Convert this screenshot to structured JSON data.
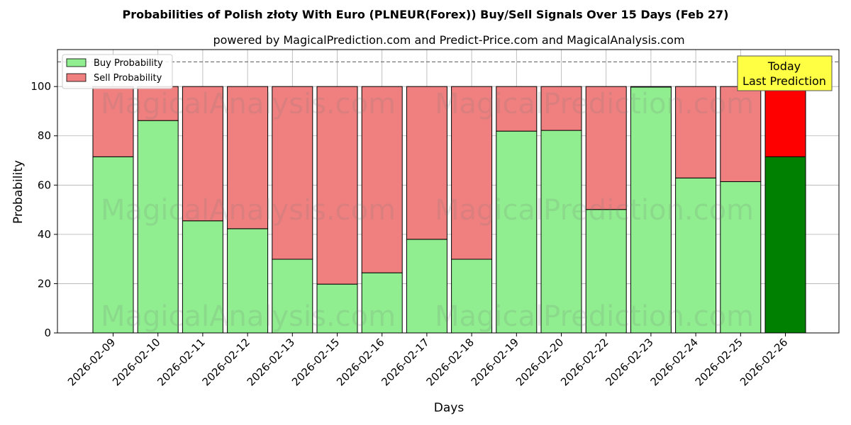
{
  "chart_data": {
    "type": "bar",
    "stacked": true,
    "title": "Probabilities of Polish złoty With Euro (PLNEUR(Forex)) Buy/Sell Signals Over 15 Days (Feb 27)",
    "subtitle": "powered by MagicalPrediction.com and Predict-Price.com and MagicalAnalysis.com",
    "xlabel": "Days",
    "ylabel": "Probability",
    "ylim": [
      0,
      115
    ],
    "yticks": [
      0,
      20,
      40,
      60,
      80,
      100
    ],
    "reference_line": 110,
    "grid": true,
    "legend_position": "top-left",
    "categories": [
      "2026-02-09",
      "2026-02-10",
      "2026-02-11",
      "2026-02-12",
      "2026-02-13",
      "2026-02-15",
      "2026-02-16",
      "2026-02-17",
      "2026-02-18",
      "2026-02-19",
      "2026-02-20",
      "2026-02-22",
      "2026-02-23",
      "2026-02-24",
      "2026-02-25",
      "2026-02-26"
    ],
    "series": [
      {
        "name": "Buy Probability",
        "color": "#90ee90",
        "highlight_color": "#008000",
        "values": [
          71.5,
          86.2,
          45.5,
          42.3,
          29.9,
          19.8,
          24.4,
          38.0,
          29.9,
          81.9,
          82.2,
          50.1,
          99.8,
          62.9,
          61.4,
          71.5
        ]
      },
      {
        "name": "Sell Probability",
        "color": "#f08080",
        "highlight_color": "#ff0000",
        "values": [
          28.5,
          13.8,
          54.5,
          57.7,
          70.1,
          80.2,
          75.6,
          62.0,
          70.1,
          18.1,
          17.8,
          49.9,
          0.2,
          37.1,
          38.6,
          28.5
        ]
      }
    ],
    "highlight_index": 15,
    "annotation": {
      "line1": "Today",
      "line2": "Last Prediction",
      "color": "#ffff44"
    },
    "watermarks": [
      "MagicalAnalysis.com",
      "MagicalPrediction.com"
    ]
  }
}
